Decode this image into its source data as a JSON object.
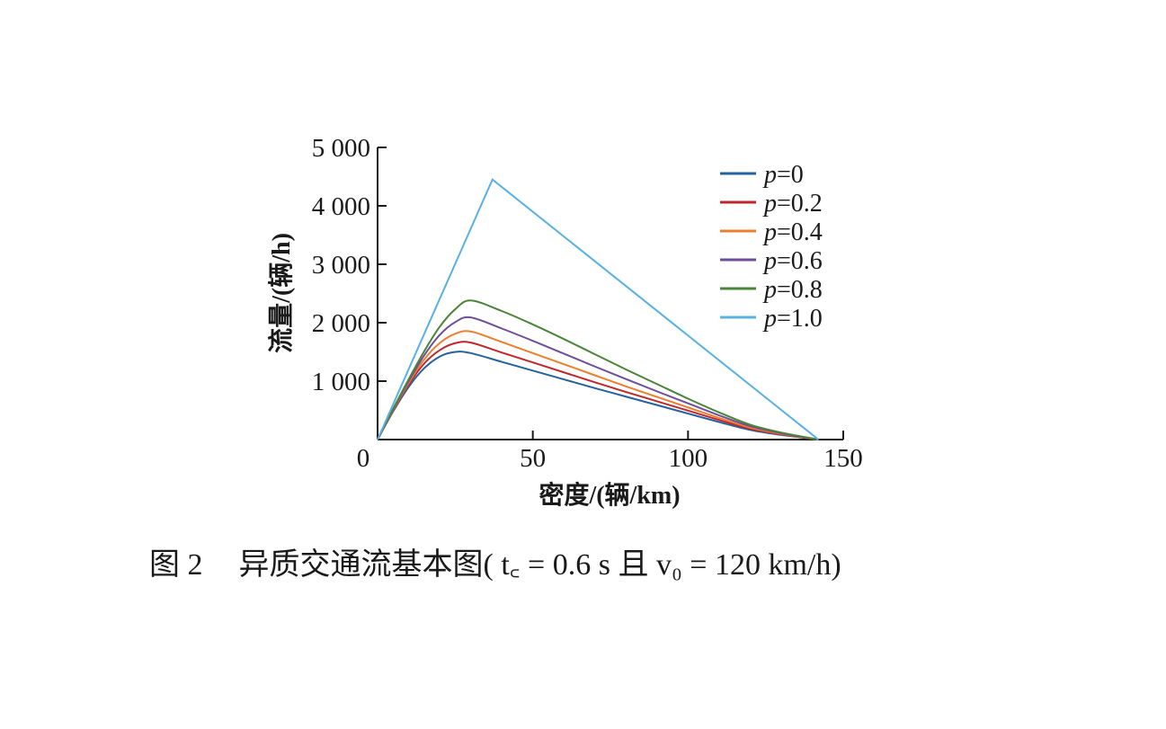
{
  "chart_data": {
    "type": "line",
    "xlabel": "密度/(辆/km)",
    "ylabel": "流量/(辆/h)",
    "xlim": [
      0,
      150
    ],
    "ylim": [
      0,
      5000
    ],
    "xticks": [
      0,
      50,
      100,
      150
    ],
    "xtick_labels": [
      "0",
      "50",
      "100",
      "150"
    ],
    "yticks": [
      1000,
      2000,
      3000,
      4000,
      5000
    ],
    "ytick_labels": [
      "1 000",
      "2 000",
      "3 000",
      "4 000",
      "5 000"
    ],
    "legend_position": "top-right",
    "legend_var": "p",
    "series": [
      {
        "name": "=0",
        "color": "#24619f",
        "x": [
          0,
          5,
          10,
          15,
          20,
          25,
          30,
          40,
          50,
          60,
          70,
          80,
          90,
          100,
          110,
          120,
          130,
          142
        ],
        "y": [
          0,
          480,
          900,
          1220,
          1420,
          1500,
          1480,
          1330,
          1180,
          1030,
          880,
          735,
          590,
          445,
          300,
          165,
          80,
          0
        ]
      },
      {
        "name": "=0.2",
        "color": "#c0272d",
        "x": [
          0,
          5,
          10,
          15,
          20,
          25,
          30,
          40,
          50,
          60,
          70,
          80,
          90,
          100,
          110,
          120,
          130,
          142
        ],
        "y": [
          0,
          495,
          940,
          1300,
          1530,
          1650,
          1660,
          1490,
          1320,
          1150,
          980,
          815,
          655,
          495,
          335,
          185,
          90,
          0
        ]
      },
      {
        "name": "=0.4",
        "color": "#ec7f2e",
        "x": [
          0,
          5,
          10,
          15,
          20,
          25,
          30,
          40,
          50,
          60,
          70,
          80,
          90,
          100,
          110,
          120,
          130,
          142
        ],
        "y": [
          0,
          505,
          970,
          1370,
          1650,
          1810,
          1850,
          1670,
          1480,
          1290,
          1100,
          910,
          730,
          550,
          370,
          205,
          100,
          0
        ]
      },
      {
        "name": "=0.6",
        "color": "#6e4e9b",
        "x": [
          0,
          5,
          10,
          15,
          20,
          25,
          30,
          40,
          50,
          60,
          70,
          80,
          90,
          100,
          110,
          120,
          130,
          142
        ],
        "y": [
          0,
          515,
          1000,
          1440,
          1790,
          2010,
          2090,
          1900,
          1690,
          1470,
          1250,
          1035,
          825,
          620,
          415,
          230,
          110,
          0
        ]
      },
      {
        "name": "=0.8",
        "color": "#4a8438",
        "x": [
          0,
          5,
          10,
          15,
          20,
          25,
          30,
          40,
          50,
          60,
          70,
          80,
          90,
          100,
          110,
          120,
          130,
          142
        ],
        "y": [
          0,
          525,
          1030,
          1510,
          1930,
          2230,
          2380,
          2200,
          1970,
          1720,
          1460,
          1200,
          950,
          700,
          465,
          255,
          120,
          0
        ]
      },
      {
        "name": "=1.0",
        "color": "#58b0e3",
        "x": [
          0,
          37,
          142
        ],
        "y": [
          0,
          4450,
          0
        ]
      }
    ]
  },
  "caption": {
    "number": "图 2",
    "title": "异质交通流基本图",
    "params": "( t꜀ = 0.6  s 且 v₀ = 120  km/h)"
  }
}
